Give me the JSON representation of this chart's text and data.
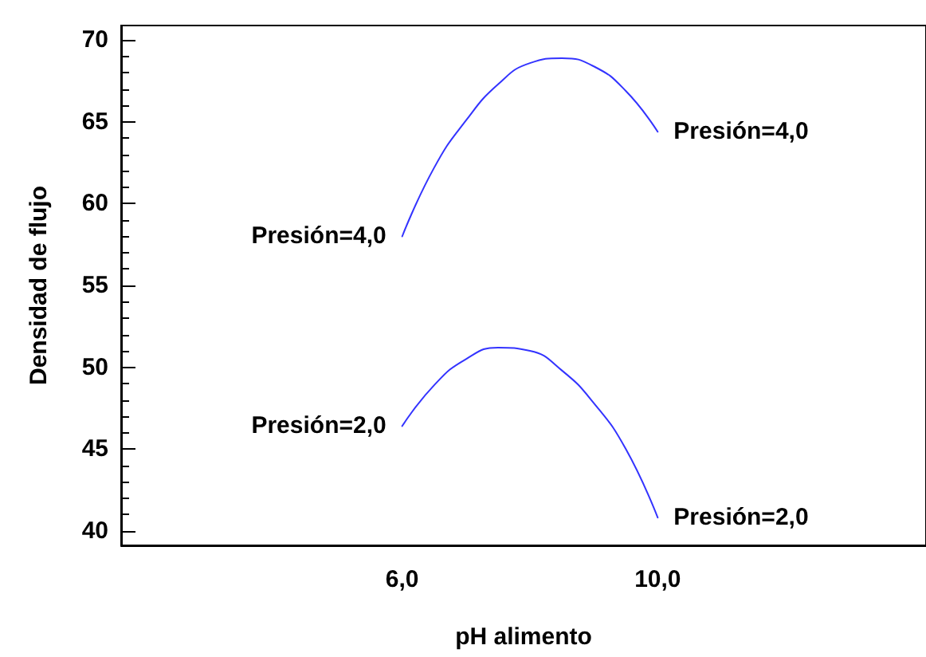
{
  "chart_data": {
    "type": "line",
    "xlabel": "pH alimento",
    "ylabel": "Densidad de flujo",
    "xlim": [
      1.6,
      14.2
    ],
    "ylim": [
      39.1,
      70.9
    ],
    "xticks": [
      {
        "value": 6,
        "label": "6,0"
      },
      {
        "value": 10,
        "label": "10,0"
      }
    ],
    "yticks": [
      40,
      45,
      50,
      55,
      60,
      65,
      70
    ],
    "x": [
      6,
      6.5,
      7,
      7.5,
      8,
      8.5,
      9,
      9.5,
      10
    ],
    "series": [
      {
        "name": "Presión=4,0",
        "color": "#3333ff",
        "values": [
          58.0,
          62.2,
          65.1,
          67.3,
          68.6,
          68.9,
          68.4,
          66.9,
          64.4
        ]
      },
      {
        "name": "Presión=2,0",
        "color": "#3333ff",
        "values": [
          46.4,
          48.9,
          50.5,
          51.2,
          51.0,
          49.8,
          47.8,
          45.0,
          40.8
        ]
      }
    ],
    "grid": false,
    "legend": false,
    "marker": "none",
    "line_style": "solid"
  }
}
